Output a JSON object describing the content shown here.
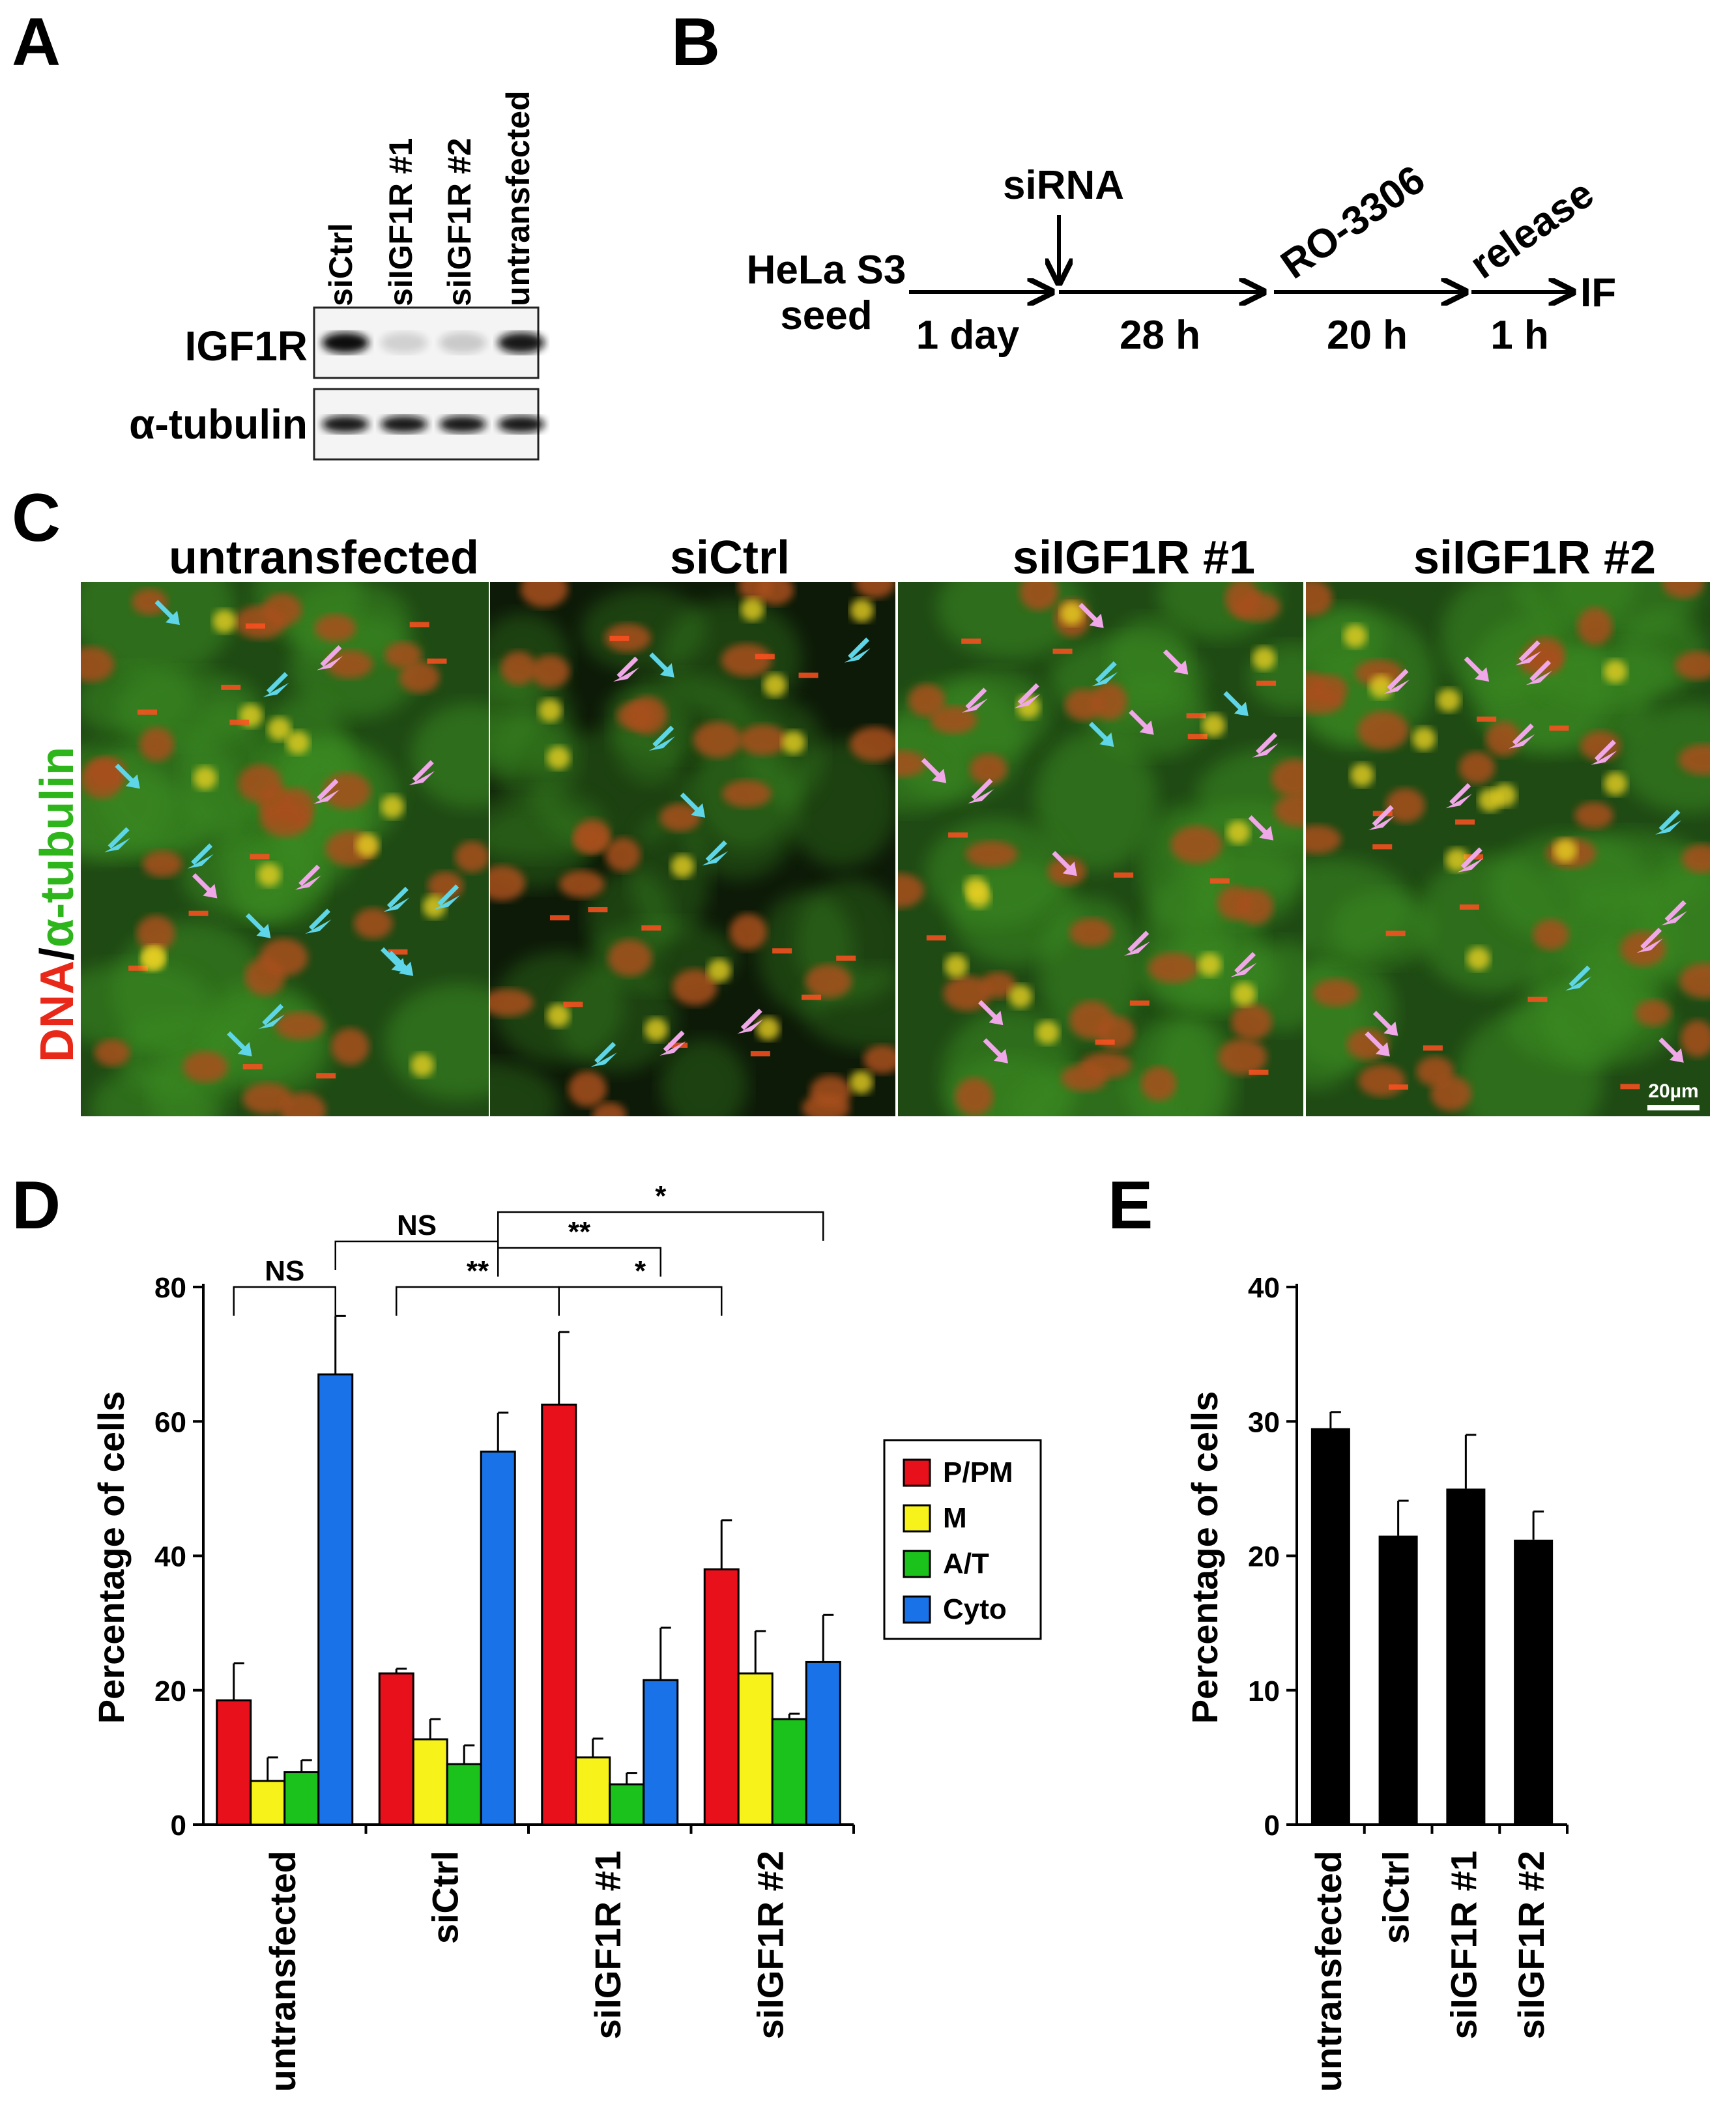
{
  "panels": {
    "A": "A",
    "B": "B",
    "C": "C",
    "D": "D",
    "E": "E"
  },
  "westernblot": {
    "lanes": [
      "siCtrl",
      "siIGF1R #1",
      "siIGF1R #2",
      "untransfected"
    ],
    "rows": [
      {
        "label": "IGF1R",
        "intensity": [
          1.0,
          0.15,
          0.18,
          0.95
        ]
      },
      {
        "label": "α-tubulin",
        "intensity": [
          0.95,
          0.95,
          0.95,
          0.95
        ]
      }
    ]
  },
  "timeline": {
    "start_line1": "HeLa S3",
    "start_line2": "seed",
    "steps": [
      {
        "top": "",
        "bottom": "1 day"
      },
      {
        "top": "",
        "bottom": "28 h"
      },
      {
        "top": "RO-3306",
        "bottom": "20 h"
      },
      {
        "top": "release",
        "bottom": "1 h"
      }
    ],
    "sirna": "siRNA",
    "end": "IF"
  },
  "micrographs": {
    "conditions": [
      "untransfected",
      "siCtrl",
      "siIGF1R #1",
      "siIGF1R #2"
    ],
    "ylabel_red": "DNA",
    "ylabel_sep": "/",
    "ylabel_green": "α-tubulin",
    "scalebar": "20µm",
    "colors": {
      "dna": "#d8321a",
      "tubulin": "#2fa81c",
      "cyto_arrow": "#5fd6e8",
      "mitosis_arrow": "#f0a8e8"
    }
  },
  "chart_data": [
    {
      "type": "bar",
      "panel": "D",
      "ylabel": "Percentage of cells",
      "ylim": [
        0,
        80
      ],
      "yticks": [
        0,
        20,
        40,
        60,
        80
      ],
      "categories": [
        "untransfected",
        "siCtrl",
        "siIGF1R #1",
        "siIGF1R #2"
      ],
      "series": [
        {
          "name": "P/PM",
          "color": "#e8101a",
          "values": [
            18.5,
            22.5,
            62.5,
            38
          ],
          "errors": [
            5.5,
            0.7,
            10.8,
            7.3
          ]
        },
        {
          "name": "M",
          "color": "#f7f21a",
          "values": [
            6.5,
            12.7,
            10,
            22.5
          ],
          "errors": [
            3.5,
            3.0,
            2.8,
            6.3
          ]
        },
        {
          "name": "A/T",
          "color": "#1cc21c",
          "values": [
            7.8,
            9,
            6,
            15.7
          ],
          "errors": [
            1.8,
            2.8,
            1.7,
            0.8
          ]
        },
        {
          "name": "Cyto",
          "color": "#1a72e8",
          "values": [
            67,
            55.5,
            21.5,
            24.2
          ],
          "errors": [
            8.7,
            5.8,
            7.8,
            7.0
          ]
        }
      ],
      "significance": [
        {
          "label": "NS"
        },
        {
          "label": "**"
        },
        {
          "label": "*"
        },
        {
          "label": "NS"
        },
        {
          "label": "**"
        },
        {
          "label": "*"
        }
      ],
      "legend": "right"
    },
    {
      "type": "bar",
      "panel": "E",
      "ylabel": "Percentage of cells",
      "ylim": [
        0,
        40
      ],
      "yticks": [
        0,
        10,
        20,
        30,
        40
      ],
      "categories": [
        "untransfected",
        "siCtrl",
        "siIGF1R #1",
        "siIGF1R #2"
      ],
      "values": [
        29.5,
        21.5,
        25,
        21.2
      ],
      "errors": [
        1.2,
        2.6,
        4.0,
        2.1
      ],
      "color": "#000000"
    }
  ]
}
